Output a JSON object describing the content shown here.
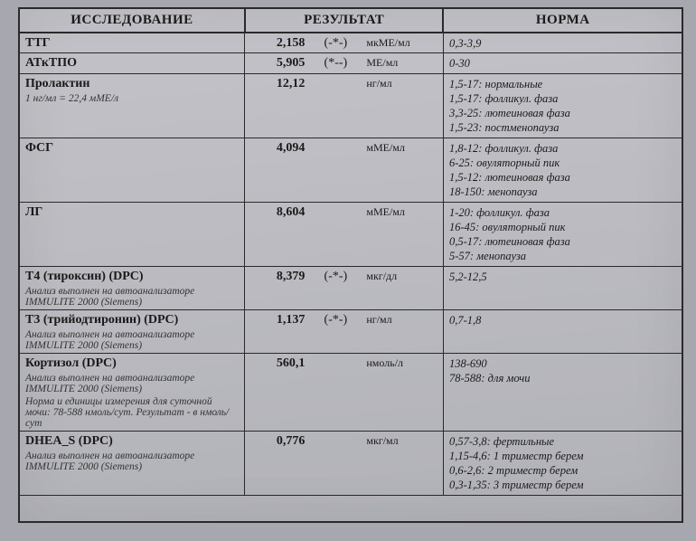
{
  "headers": {
    "test": "ИССЛЕДОВАНИЕ",
    "result": "РЕЗУЛЬТАТ",
    "norm": "НОРМА"
  },
  "rows": [
    {
      "name": "ТТГ",
      "value": "2,158",
      "flag": "(-*-)",
      "unit": "мкМЕ/мл",
      "norms": [
        "0,3-3,9"
      ],
      "note": ""
    },
    {
      "name": "АТкТПО",
      "value": "5,905",
      "flag": "(*--)",
      "unit": "МЕ/мл",
      "norms": [
        "0-30"
      ],
      "note": ""
    },
    {
      "name": "Пролактин",
      "value": "12,12",
      "flag": "",
      "unit": "нг/мл",
      "norms": [
        "1,5-17: нормальные",
        "1,5-17: фолликул. фаза",
        "3,3-25: лютеиновая фаза",
        "1,5-23: постменопауза"
      ],
      "note": "1 нг/мл = 22,4 мМЕ/л"
    },
    {
      "name": "ФСГ",
      "value": "4,094",
      "flag": "",
      "unit": "мМЕ/мл",
      "norms": [
        "1,8-12: фолликул. фаза",
        "6-25: овуляторный пик",
        "1,5-12: лютеиновая фаза",
        "18-150: менопауза"
      ],
      "note": ""
    },
    {
      "name": "ЛГ",
      "value": "8,604",
      "flag": "",
      "unit": "мМЕ/мл",
      "norms": [
        "1-20: фолликул. фаза",
        "16-45: овуляторный пик",
        "0,5-17: лютеиновая фаза",
        "5-57: менопауза"
      ],
      "note": ""
    },
    {
      "name": "Т4 (тироксин) (DPC)",
      "value": "8,379",
      "flag": "(-*-)",
      "unit": "мкг/дл",
      "norms": [
        "5,2-12,5"
      ],
      "note": "Анализ выполнен на автоанализаторе IMMULITE 2000   (Siemens)"
    },
    {
      "name": "Т3 (трийодтиронин) (DPC)",
      "value": "1,137",
      "flag": "(-*-)",
      "unit": "нг/мл",
      "norms": [
        "0,7-1,8"
      ],
      "note": "Анализ выполнен на автоанализаторе IMMULITE 2000   (Siemens)"
    },
    {
      "name": "Кортизол (DPC)",
      "value": "560,1",
      "flag": "",
      "unit": "нмоль/л",
      "norms": [
        "138-690",
        "78-588: для мочи"
      ],
      "note": "Анализ выполнен на автоанализаторе IMMULITE 2000   (Siemens)",
      "extra": "Норма и единицы измерения для суточной мочи: 78-588 нмоль/сут.   Результат - в нмоль/сут"
    },
    {
      "name": "DHEA_S (DPC)",
      "value": "0,776",
      "flag": "",
      "unit": "мкг/мл",
      "norms": [
        "0,57-3,8: фертильные",
        "1,15-4,6: 1 триместр берем",
        "0,6-2,6: 2 триместр берем",
        "0,3-1,35: 3 триместр берем"
      ],
      "note": "Анализ выполнен на автоанализаторе IMMULITE 2000   (Siemens)"
    }
  ],
  "col_widths": {
    "test": "34%",
    "result": "30%",
    "norm": "36%"
  }
}
